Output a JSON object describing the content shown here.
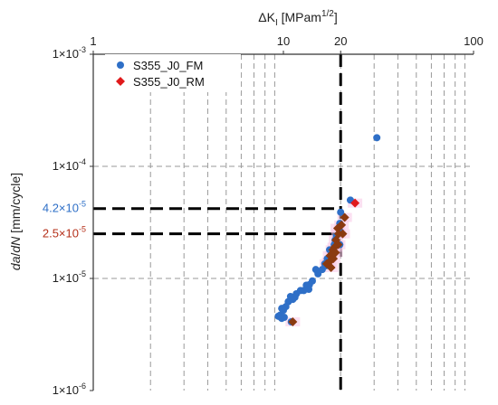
{
  "chart_data": {
    "type": "scatter",
    "title": "",
    "xlabel": {
      "prefix": "ΔK",
      "sub": "I",
      "suffix": " [MPam",
      "sup": "1/2",
      "close": "]"
    },
    "ylabel": {
      "a": "da",
      "slash": "/",
      "b": "dN",
      "unit": " [mm/cycle]"
    },
    "x_axis": {
      "scale": "log",
      "lim": [
        1,
        100
      ],
      "position": "top",
      "ticks": [
        1,
        10,
        20,
        100
      ],
      "tick_labels": [
        "1",
        "10",
        "20",
        "100"
      ]
    },
    "y_axis": {
      "scale": "log",
      "lim": [
        1e-06,
        0.001
      ],
      "ticks": [
        1e-06,
        1e-05,
        0.0001,
        0.001
      ],
      "tick_labels": [
        {
          "base": "1×10",
          "exp": "-6"
        },
        {
          "base": "1×10",
          "exp": "-5"
        },
        {
          "base": "1×10",
          "exp": "-4"
        },
        {
          "base": "1×10",
          "exp": "-3"
        }
      ]
    },
    "grid": {
      "vertical_minor": true,
      "horizontal_major": true,
      "style": "dashed",
      "color": "#9a9a9a"
    },
    "legend": {
      "position": "top-left"
    },
    "series": [
      {
        "name": "S355_J0_FM",
        "marker": "circle",
        "color": "#2e6fc7",
        "points": [
          [
            31.0,
            0.00018
          ],
          [
            22.5,
            5e-05
          ],
          [
            20.0,
            3.9e-05
          ],
          [
            19.8,
            3.1e-05
          ],
          [
            20.0,
            2.6e-05
          ],
          [
            19.0,
            2.4e-05
          ],
          [
            18.7,
            2.2e-05
          ],
          [
            19.8,
            2e-05
          ],
          [
            18.5,
            2e-05
          ],
          [
            17.5,
            1.8e-05
          ],
          [
            17.0,
            1.5e-05
          ],
          [
            16.8,
            1.3e-05
          ],
          [
            16.5,
            1.35e-05
          ],
          [
            16.0,
            1.2e-05
          ],
          [
            15.2,
            1.1e-05
          ],
          [
            14.8,
            1.2e-05
          ],
          [
            14.2,
            9.5e-06
          ],
          [
            13.7,
            8.8e-06
          ],
          [
            13.2,
            8.7e-06
          ],
          [
            13.6,
            8e-06
          ],
          [
            12.8,
            7.8e-06
          ],
          [
            12.3,
            7.8e-06
          ],
          [
            11.7,
            7.3e-06
          ],
          [
            11.5,
            6.8e-06
          ],
          [
            11.2,
            6.5e-06
          ],
          [
            10.9,
            6.9e-06
          ],
          [
            10.6,
            6.2e-06
          ],
          [
            10.3,
            5.6e-06
          ],
          [
            10.0,
            5.2e-06
          ],
          [
            9.8,
            5.4e-06
          ],
          [
            9.6,
            4.7e-06
          ],
          [
            9.4,
            4.6e-06
          ],
          [
            9.8,
            4.4e-06
          ],
          [
            10.1,
            4.5e-06
          ],
          [
            11.0,
            4.1e-06
          ]
        ]
      },
      {
        "name": "S355_J0_RM",
        "marker": "diamond",
        "color": "#8b3a10",
        "highlight_color": "#e0191b",
        "points": [
          [
            23.8,
            4.7e-05
          ],
          [
            21.0,
            3.5e-05
          ],
          [
            20.2,
            3e-05
          ],
          [
            19.3,
            2.8e-05
          ],
          [
            20.5,
            2.5e-05
          ],
          [
            19.5,
            2.5e-05
          ],
          [
            18.9,
            2.2e-05
          ],
          [
            19.4,
            2e-05
          ],
          [
            18.6,
            1.9e-05
          ],
          [
            18.2,
            1.8e-05
          ],
          [
            18.8,
            1.7e-05
          ],
          [
            17.6,
            1.6e-05
          ],
          [
            18.3,
            1.5e-05
          ],
          [
            17.4,
            1.4e-05
          ],
          [
            16.9,
            1.35e-05
          ],
          [
            17.8,
            1.25e-05
          ],
          [
            11.2,
            4.1e-06
          ]
        ]
      }
    ],
    "reference_lines": [
      {
        "x": 20,
        "y_from": 1e-06,
        "y_to": 0.001
      },
      {
        "y": 4.2e-05,
        "x_from": 1,
        "x_to": 20
      },
      {
        "y": 2.5e-05,
        "x_from": 1,
        "x_to": 20
      }
    ],
    "annotations": [
      {
        "text_base": "4.2×10",
        "text_exp": "-5",
        "y": 4.2e-05,
        "color": "#2e6fc7"
      },
      {
        "text_base": "2.5×10",
        "text_exp": "-5",
        "y": 2.5e-05,
        "color": "#b5301a"
      }
    ]
  }
}
